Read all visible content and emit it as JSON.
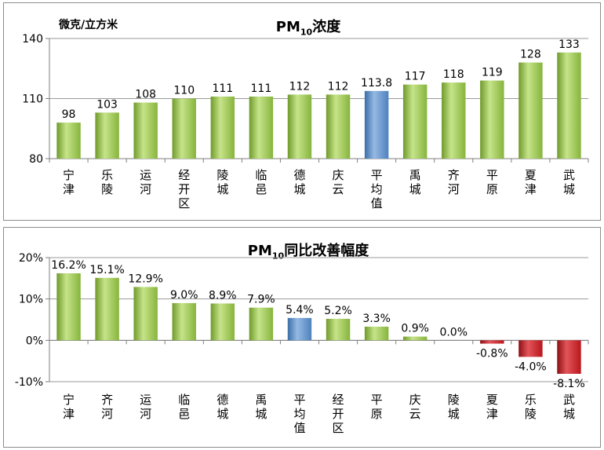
{
  "chart_data": [
    {
      "type": "bar",
      "title_main": "PM",
      "title_sub": "10",
      "title_rest": "浓度",
      "unit_label": "微克/立方米",
      "categories": [
        "宁津",
        "乐陵",
        "运河",
        "经开区",
        "陵城",
        "临邑",
        "德城",
        "庆云",
        "平均值",
        "禹城",
        "齐河",
        "平原",
        "夏津",
        "武城"
      ],
      "values": [
        98,
        103,
        108,
        110,
        111,
        111,
        112,
        112,
        113.8,
        117,
        118,
        119,
        128,
        133
      ],
      "value_labels": [
        "98",
        "103",
        "108",
        "110",
        "111",
        "111",
        "112",
        "112",
        "113.8",
        "117",
        "118",
        "119",
        "128",
        "133"
      ],
      "highlight_category": "平均值",
      "ylim": [
        80,
        140
      ],
      "yticks": [
        "80",
        "110",
        "140"
      ],
      "grid": true,
      "colors": {
        "normal": "#8cc63f",
        "average": "#4f81bd"
      }
    },
    {
      "type": "bar",
      "title_main": "PM",
      "title_sub": "10",
      "title_rest": "同比改善幅度",
      "categories": [
        "宁津",
        "齐河",
        "运河",
        "临邑",
        "德城",
        "禹城",
        "平均值",
        "经开区",
        "平原",
        "庆云",
        "陵城",
        "夏津",
        "乐陵",
        "武城"
      ],
      "values": [
        16.2,
        15.1,
        12.9,
        9.0,
        8.9,
        7.9,
        5.4,
        5.2,
        3.3,
        0.9,
        0.0,
        -0.8,
        -4.0,
        -8.1
      ],
      "value_labels": [
        "16.2%",
        "15.1%",
        "12.9%",
        "9.0%",
        "8.9%",
        "7.9%",
        "5.4%",
        "5.2%",
        "3.3%",
        "0.9%",
        "0.0%",
        "-0.8%",
        "-4.0%",
        "-8.1%"
      ],
      "highlight_category": "平均值",
      "ylim": [
        -10,
        20
      ],
      "yticks": [
        "-10%",
        "0%",
        "10%",
        "20%"
      ],
      "grid": true,
      "colors": {
        "positive": "#8cc63f",
        "average": "#4f81bd",
        "negative": "#c0151b"
      }
    }
  ]
}
